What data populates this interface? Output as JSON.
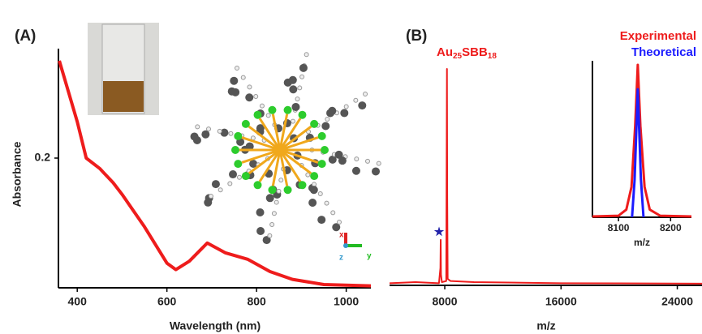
{
  "chart_data": [
    {
      "type": "line",
      "panel_label": "(A)",
      "ylabel": "Absorbance",
      "xlabel": "Wavelength (nm)",
      "xlim": [
        358,
        1055
      ],
      "ylim": [
        0,
        0.35
      ],
      "xticks": [
        400,
        600,
        800,
        1000
      ],
      "yticks": [
        0.2
      ],
      "series": [
        {
          "color": "#ee1c1c",
          "x": [
            360,
            400,
            420,
            450,
            480,
            500,
            550,
            600,
            620,
            650,
            690,
            730,
            780,
            830,
            880,
            950,
            1055
          ],
          "values": [
            0.35,
            0.256,
            0.2,
            0.184,
            0.162,
            0.144,
            0.094,
            0.038,
            0.028,
            0.041,
            0.069,
            0.054,
            0.044,
            0.025,
            0.013,
            0.005,
            0.003
          ]
        }
      ]
    },
    {
      "type": "line",
      "panel_label": "(B)",
      "xlabel": "m/z",
      "peak_label": [
        "Au",
        "25",
        "SBB",
        "18"
      ],
      "peak_marker": "★",
      "xlim": [
        4200,
        25700
      ],
      "ylim": [
        0,
        100
      ],
      "xticks": [
        8000,
        16000,
        24000
      ],
      "series": [
        {
          "color": "#ee1c1c",
          "x": [
            4200,
            6000,
            7600,
            7700,
            7720,
            7740,
            7800,
            8100,
            8130,
            8150,
            8170,
            8200,
            8400,
            10000,
            16000,
            25700
          ],
          "values": [
            1,
            1.5,
            1,
            8,
            21,
            5,
            1.5,
            2,
            60,
            100,
            40,
            3,
            2,
            1.5,
            1,
            0.8
          ]
        }
      ]
    },
    {
      "type": "line",
      "xlabel": "m/z",
      "xlim": [
        8050,
        8240
      ],
      "ylim": [
        0,
        100
      ],
      "xticks": [
        8100,
        8200
      ],
      "series": [
        {
          "name": "Experimental",
          "color": "#ee1c1c",
          "x": [
            8050,
            8100,
            8115,
            8125,
            8132,
            8137,
            8142,
            8150,
            8160,
            8180,
            8240
          ],
          "values": [
            0.5,
            1,
            5,
            20,
            60,
            100,
            60,
            20,
            5,
            1,
            0.5
          ]
        },
        {
          "name": "Theoretical",
          "color": "#1c1cff",
          "x": [
            8126,
            8131,
            8137,
            8143,
            8148
          ],
          "values": [
            0,
            25,
            84,
            25,
            0
          ]
        }
      ]
    }
  ],
  "illustration": {
    "axis_labels": [
      "x",
      "y",
      "z"
    ]
  }
}
